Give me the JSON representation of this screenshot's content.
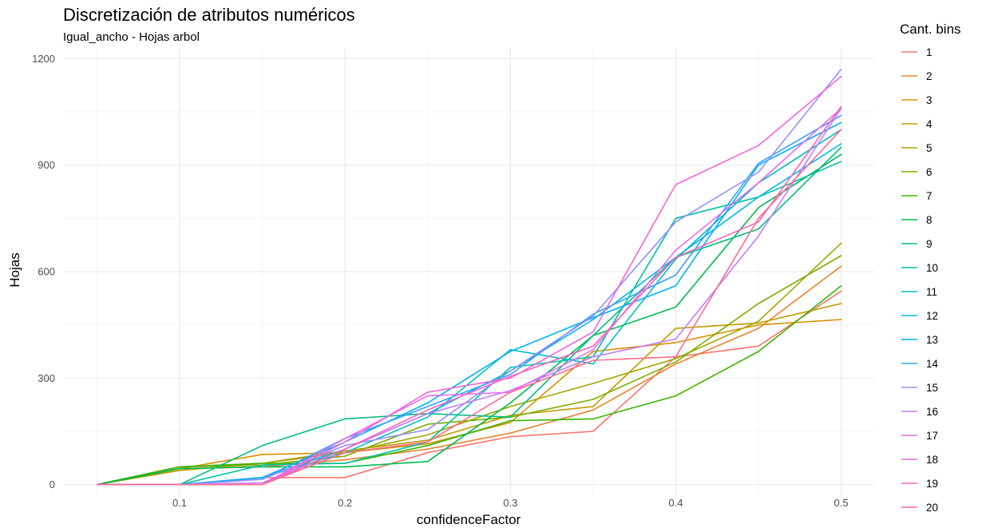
{
  "chart_data": {
    "type": "line",
    "title": "Discretización de atributos numéricos",
    "subtitle": "Igual_ancho - Hojas arbol",
    "xlabel": "confidenceFactor",
    "ylabel": "Hojas",
    "x": [
      0.05,
      0.1,
      0.15,
      0.2,
      0.25,
      0.3,
      0.35,
      0.4,
      0.45,
      0.5
    ],
    "xlim": [
      0.03,
      0.52
    ],
    "ylim": [
      -30,
      1230
    ],
    "x_ticks": [
      0.1,
      0.2,
      0.3,
      0.4,
      0.5
    ],
    "x_tick_labels": [
      "0.1",
      "0.2",
      "0.3",
      "0.4",
      "0.5"
    ],
    "y_ticks": [
      0,
      300,
      600,
      900,
      1200
    ],
    "y_tick_labels": [
      "0",
      "300",
      "600",
      "900",
      "1200"
    ],
    "grid": true,
    "legend_title": "Cant. bins",
    "legend_position": "right",
    "series": [
      {
        "name": "1",
        "color": "#F8766D",
        "values": [
          0,
          0,
          20,
          20,
          90,
          135,
          150,
          360,
          390,
          545
        ]
      },
      {
        "name": "2",
        "color": "#EA8331",
        "values": [
          0,
          45,
          50,
          70,
          100,
          145,
          210,
          340,
          440,
          615
        ]
      },
      {
        "name": "3",
        "color": "#D89000",
        "values": [
          0,
          45,
          85,
          90,
          115,
          175,
          375,
          400,
          450,
          465
        ]
      },
      {
        "name": "4",
        "color": "#C09B00",
        "values": [
          0,
          40,
          60,
          95,
          125,
          195,
          220,
          440,
          455,
          510
        ]
      },
      {
        "name": "5",
        "color": "#A3A500",
        "values": [
          0,
          50,
          60,
          90,
          140,
          220,
          285,
          355,
          460,
          680
        ]
      },
      {
        "name": "6",
        "color": "#7CAE00",
        "values": [
          0,
          50,
          55,
          80,
          170,
          190,
          240,
          345,
          510,
          645
        ]
      },
      {
        "name": "7",
        "color": "#39B600",
        "values": [
          0,
          50,
          60,
          60,
          110,
          180,
          185,
          250,
          375,
          560
        ]
      },
      {
        "name": "8",
        "color": "#00BB4E",
        "values": [
          0,
          45,
          50,
          50,
          65,
          230,
          420,
          500,
          780,
          930
        ]
      },
      {
        "name": "9",
        "color": "#00BF7D",
        "values": [
          0,
          0,
          110,
          185,
          200,
          190,
          420,
          640,
          720,
          950
        ]
      },
      {
        "name": "10",
        "color": "#00C1A3",
        "values": [
          0,
          0,
          55,
          60,
          120,
          330,
          360,
          750,
          810,
          910
        ]
      },
      {
        "name": "11",
        "color": "#00BFC4",
        "values": [
          0,
          0,
          20,
          90,
          190,
          380,
          340,
          635,
          850,
          1000
        ]
      },
      {
        "name": "12",
        "color": "#00BAE0",
        "values": [
          0,
          0,
          20,
          100,
          200,
          320,
          465,
          640,
          810,
          960
        ]
      },
      {
        "name": "13",
        "color": "#00B0F6",
        "values": [
          0,
          0,
          20,
          120,
          230,
          375,
          470,
          560,
          900,
          1020
        ]
      },
      {
        "name": "14",
        "color": "#35A2FF",
        "values": [
          0,
          0,
          15,
          130,
          220,
          310,
          480,
          590,
          905,
          1040
        ]
      },
      {
        "name": "15",
        "color": "#9590FF",
        "values": [
          0,
          0,
          15,
          110,
          155,
          320,
          475,
          740,
          880,
          1170
        ]
      },
      {
        "name": "16",
        "color": "#C77CFF",
        "values": [
          0,
          0,
          5,
          100,
          200,
          265,
          360,
          410,
          700,
          1060
        ]
      },
      {
        "name": "17",
        "color": "#E76BF3",
        "values": [
          0,
          0,
          0,
          130,
          250,
          260,
          380,
          660,
          850,
          1060
        ]
      },
      {
        "name": "18",
        "color": "#FA62DB",
        "values": [
          0,
          0,
          0,
          120,
          260,
          300,
          430,
          845,
          955,
          1150
        ]
      },
      {
        "name": "19",
        "color": "#FF62BC",
        "values": [
          0,
          0,
          0,
          100,
          210,
          305,
          390,
          640,
          740,
          1065
        ]
      },
      {
        "name": "20",
        "color": "#FF6C91",
        "values": [
          0,
          0,
          0,
          90,
          120,
          260,
          350,
          360,
          750,
          1000
        ]
      }
    ]
  }
}
